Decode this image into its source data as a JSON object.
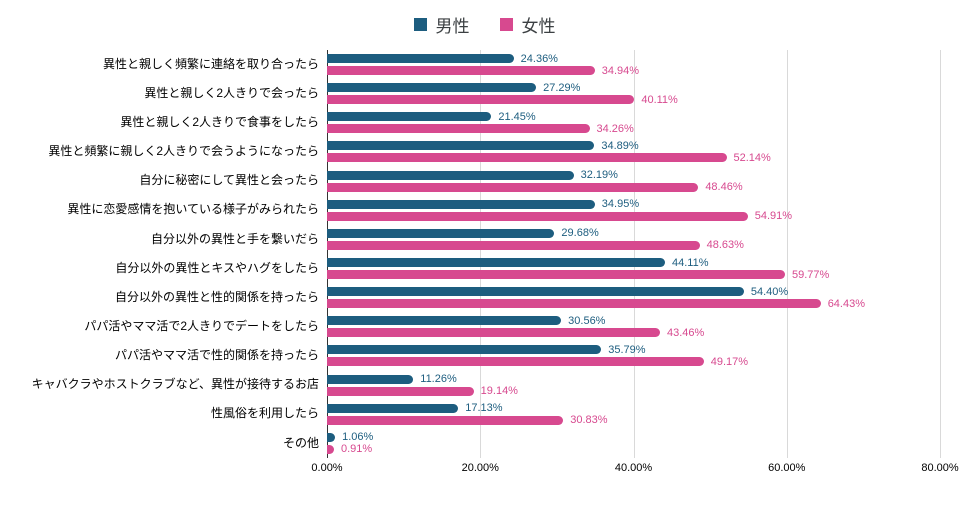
{
  "legend": {
    "male_label": "男性",
    "female_label": "女性"
  },
  "colors": {
    "male": "#1d5d7f",
    "female": "#d7498f",
    "gridline": "#d9d9d9",
    "zero_axis_line": "#333333",
    "category_label": "#000000",
    "legend_text": "#3c4043"
  },
  "x_axis": {
    "ticks": [
      "0.00%",
      "20.00%",
      "40.00%",
      "60.00%",
      "80.00%"
    ],
    "max": 80
  },
  "chart_data": {
    "type": "bar",
    "orientation": "horizontal",
    "title": "",
    "xlabel": "",
    "ylabel": "",
    "xlim": [
      0,
      80
    ],
    "grid": true,
    "legend_position": "top-center",
    "value_labels": true,
    "value_label_format": "0.00%",
    "categories": [
      "異性と親しく頻繁に連絡を取り合ったら",
      "異性と親しく2人きりで会ったら",
      "異性と親しく2人きりで食事をしたら",
      "異性と頻繁に親しく2人きりで会うようになったら",
      "自分に秘密にして異性と会ったら",
      "異性に恋愛感情を抱いている様子がみられたら",
      "自分以外の異性と手を繋いだら",
      "自分以外の異性とキスやハグをしたら",
      "自分以外の異性と性的関係を持ったら",
      "パパ活やママ活で2人きりでデートをしたら",
      "パパ活やママ活で性的関係を持ったら",
      "キャバクラやホストクラブなど、異性が接待するお店",
      "性風俗を利用したら",
      "その他"
    ],
    "series": [
      {
        "name": "男性",
        "color": "#1d5d7f",
        "values": [
          24.36,
          27.29,
          21.45,
          34.89,
          32.19,
          34.95,
          29.68,
          44.11,
          54.4,
          30.56,
          35.79,
          11.26,
          17.13,
          1.06
        ]
      },
      {
        "name": "女性",
        "color": "#d7498f",
        "values": [
          34.94,
          40.11,
          34.26,
          52.14,
          48.46,
          54.91,
          48.63,
          59.77,
          64.43,
          43.46,
          49.17,
          19.14,
          30.83,
          0.91
        ]
      }
    ]
  }
}
